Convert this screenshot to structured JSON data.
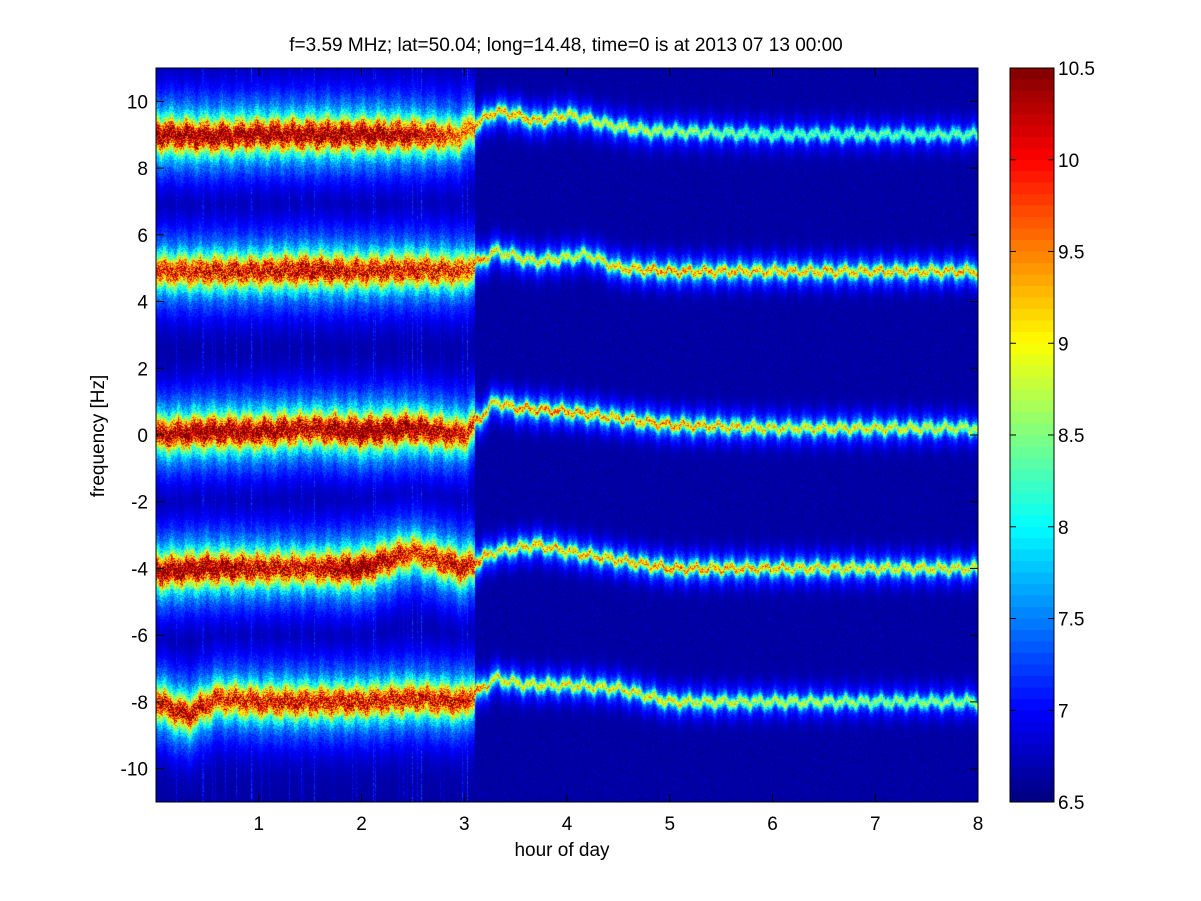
{
  "chart_data": {
    "type": "heatmap",
    "title": "f=3.59 MHz;  lat=50.04; long=14.48, time=0 is at 2013 07 13 00:00",
    "xlabel": "hour of day",
    "ylabel": "frequency [Hz]",
    "xlim": [
      0,
      8
    ],
    "ylim": [
      -11,
      11
    ],
    "xticks": [
      1,
      2,
      3,
      4,
      5,
      6,
      7,
      8
    ],
    "yticks": [
      -10,
      -8,
      -6,
      -4,
      -2,
      0,
      2,
      4,
      6,
      8,
      10
    ],
    "grid": false,
    "colormap": "jet",
    "colorbar": {
      "range": [
        6.5,
        10.5
      ],
      "ticks": [
        6.5,
        7,
        7.5,
        8,
        8.5,
        9,
        9.5,
        10,
        10.5
      ],
      "position": "right"
    },
    "background_value": 6.6,
    "ridges": [
      {
        "label": "line near +9 Hz",
        "points": [
          [
            0,
            9.0
          ],
          [
            0.5,
            8.95
          ],
          [
            1.0,
            9.0
          ],
          [
            1.5,
            9.0
          ],
          [
            2.0,
            9.0
          ],
          [
            2.5,
            9.0
          ],
          [
            2.95,
            8.95
          ],
          [
            3.3,
            9.7
          ],
          [
            3.5,
            9.6
          ],
          [
            3.7,
            9.4
          ],
          [
            4.0,
            9.6
          ],
          [
            4.4,
            9.3
          ],
          [
            4.8,
            9.1
          ],
          [
            5.0,
            9.1
          ],
          [
            6.0,
            9.0
          ],
          [
            7.0,
            9.0
          ],
          [
            8.0,
            9.0
          ]
        ],
        "peak": [
          10.2,
          10.2,
          10.1,
          10.2,
          10.2,
          10.0,
          9.4,
          9.0,
          9.2,
          9.0,
          8.8,
          8.6,
          8.6,
          8.5,
          8.2,
          8.2,
          8.2
        ]
      },
      {
        "label": "line near +5 Hz",
        "points": [
          [
            0,
            4.9
          ],
          [
            0.5,
            4.9
          ],
          [
            1.0,
            4.9
          ],
          [
            1.5,
            4.95
          ],
          [
            2.0,
            4.9
          ],
          [
            2.5,
            4.95
          ],
          [
            3.0,
            4.9
          ],
          [
            3.3,
            5.5
          ],
          [
            3.7,
            5.2
          ],
          [
            4.2,
            5.4
          ],
          [
            4.5,
            5.0
          ],
          [
            5.0,
            4.9
          ],
          [
            6.0,
            4.9
          ],
          [
            7.0,
            4.9
          ],
          [
            8.0,
            4.9
          ]
        ],
        "peak": [
          9.6,
          9.8,
          9.8,
          10.0,
          9.8,
          9.8,
          9.6,
          8.8,
          8.8,
          8.6,
          9.0,
          9.2,
          9.0,
          9.0,
          9.0
        ]
      },
      {
        "label": "line near 0 Hz",
        "points": [
          [
            0,
            0.0
          ],
          [
            0.5,
            0.1
          ],
          [
            1.0,
            0.1
          ],
          [
            1.5,
            0.2
          ],
          [
            2.0,
            0.1
          ],
          [
            2.5,
            0.2
          ],
          [
            3.0,
            0.0
          ],
          [
            3.3,
            1.0
          ],
          [
            3.5,
            0.8
          ],
          [
            4.0,
            0.7
          ],
          [
            4.5,
            0.5
          ],
          [
            5.0,
            0.3
          ],
          [
            6.0,
            0.2
          ],
          [
            7.0,
            0.2
          ],
          [
            8.0,
            0.2
          ]
        ],
        "peak": [
          10.0,
          10.2,
          10.2,
          10.0,
          10.4,
          10.2,
          9.8,
          8.8,
          9.2,
          9.2,
          9.0,
          9.2,
          8.8,
          8.8,
          8.6
        ]
      },
      {
        "label": "line near -4 Hz",
        "points": [
          [
            0,
            -4.1
          ],
          [
            0.5,
            -4.0
          ],
          [
            1.0,
            -4.0
          ],
          [
            1.5,
            -4.0
          ],
          [
            2.0,
            -4.0
          ],
          [
            2.5,
            -3.5
          ],
          [
            3.0,
            -4.0
          ],
          [
            3.3,
            -3.5
          ],
          [
            3.7,
            -3.3
          ],
          [
            4.2,
            -3.6
          ],
          [
            4.6,
            -3.8
          ],
          [
            5.0,
            -4.0
          ],
          [
            6.0,
            -4.0
          ],
          [
            7.0,
            -4.0
          ],
          [
            8.0,
            -4.0
          ]
        ],
        "peak": [
          10.2,
          10.2,
          10.0,
          9.8,
          10.4,
          9.6,
          10.0,
          8.8,
          9.0,
          9.0,
          9.0,
          9.2,
          9.0,
          8.8,
          8.8
        ]
      },
      {
        "label": "line near -8 Hz",
        "points": [
          [
            0,
            -8.0
          ],
          [
            0.3,
            -8.4
          ],
          [
            0.6,
            -7.9
          ],
          [
            1.0,
            -8.0
          ],
          [
            1.5,
            -8.0
          ],
          [
            2.0,
            -8.0
          ],
          [
            2.5,
            -7.9
          ],
          [
            3.0,
            -8.0
          ],
          [
            3.3,
            -7.3
          ],
          [
            3.6,
            -7.5
          ],
          [
            4.0,
            -7.5
          ],
          [
            4.5,
            -7.6
          ],
          [
            5.0,
            -8.0
          ],
          [
            6.0,
            -8.0
          ],
          [
            7.0,
            -8.0
          ],
          [
            8.0,
            -8.0
          ]
        ],
        "peak": [
          9.8,
          10.0,
          9.6,
          9.8,
          9.8,
          9.8,
          9.8,
          9.8,
          8.8,
          8.8,
          8.8,
          8.8,
          8.8,
          8.6,
          8.4,
          8.4
        ]
      }
    ]
  }
}
